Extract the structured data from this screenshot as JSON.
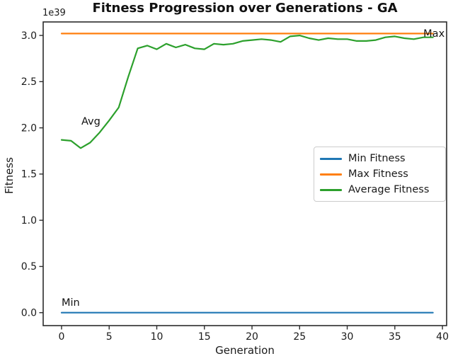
{
  "chart_data": {
    "type": "line",
    "title": "Fitness Progression over Generations - GA",
    "xlabel": "Generation",
    "ylabel": "Fitness",
    "y_offset_text": "1e39",
    "x": [
      0,
      1,
      2,
      3,
      4,
      5,
      6,
      7,
      8,
      9,
      10,
      11,
      12,
      13,
      14,
      15,
      16,
      17,
      18,
      19,
      20,
      21,
      22,
      23,
      24,
      25,
      26,
      27,
      28,
      29,
      30,
      31,
      32,
      33,
      34,
      35,
      36,
      37,
      38,
      39
    ],
    "series": [
      {
        "name": "Min Fitness",
        "color": "#1f77b4",
        "values": [
          0,
          0,
          0,
          0,
          0,
          0,
          0,
          0,
          0,
          0,
          0,
          0,
          0,
          0,
          0,
          0,
          0,
          0,
          0,
          0,
          0,
          0,
          0,
          0,
          0,
          0,
          0,
          0,
          0,
          0,
          0,
          0,
          0,
          0,
          0,
          0,
          0,
          0,
          0,
          0
        ]
      },
      {
        "name": "Max Fitness",
        "color": "#ff7f0e",
        "values": [
          3.02,
          3.02,
          3.02,
          3.02,
          3.02,
          3.02,
          3.02,
          3.02,
          3.02,
          3.02,
          3.02,
          3.02,
          3.02,
          3.02,
          3.02,
          3.02,
          3.02,
          3.02,
          3.02,
          3.02,
          3.02,
          3.02,
          3.02,
          3.02,
          3.02,
          3.02,
          3.02,
          3.02,
          3.02,
          3.02,
          3.02,
          3.02,
          3.02,
          3.02,
          3.02,
          3.02,
          3.02,
          3.02,
          3.02,
          3.02
        ]
      },
      {
        "name": "Average Fitness",
        "color": "#2ca02c",
        "values": [
          1.87,
          1.86,
          1.78,
          1.84,
          1.95,
          2.08,
          2.22,
          2.55,
          2.86,
          2.89,
          2.85,
          2.91,
          2.87,
          2.9,
          2.86,
          2.85,
          2.91,
          2.9,
          2.91,
          2.94,
          2.95,
          2.96,
          2.95,
          2.93,
          2.99,
          3.0,
          2.97,
          2.95,
          2.97,
          2.96,
          2.96,
          2.94,
          2.94,
          2.95,
          2.98,
          2.99,
          2.97,
          2.96,
          2.98,
          2.98
        ]
      }
    ],
    "x_ticks": [
      0,
      5,
      10,
      15,
      20,
      25,
      30,
      35,
      40
    ],
    "y_ticks": [
      0.0,
      0.5,
      1.0,
      1.5,
      2.0,
      2.5,
      3.0
    ],
    "y_tick_labels": [
      "0.0",
      "0.5",
      "1.0",
      "1.5",
      "2.0",
      "2.5",
      "3.0"
    ],
    "xlim": [
      -1.93,
      40.44
    ],
    "ylim": [
      -0.14,
      3.146
    ],
    "grid": false,
    "legend": {
      "position": "center right",
      "entries": [
        "Min Fitness",
        "Max Fitness",
        "Average Fitness"
      ]
    },
    "annotations": [
      {
        "text": "Max",
        "x": 38.0,
        "y": 2.985
      },
      {
        "text": "Avg",
        "x": 2.08,
        "y": 2.035
      },
      {
        "text": "Min",
        "x": 0.0,
        "y": 0.074
      }
    ]
  }
}
